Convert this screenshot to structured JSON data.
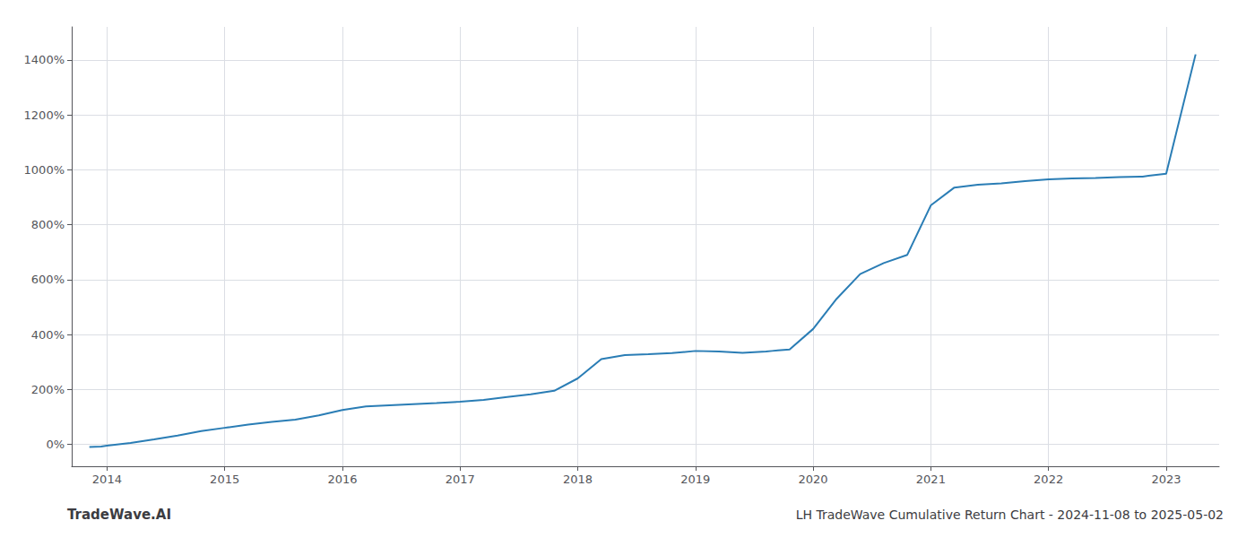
{
  "chart_data": {
    "type": "line",
    "title": "LH TradeWave Cumulative Return Chart - 2024-11-08 to 2025-05-02",
    "annotations": [
      "TradeWave.AI"
    ],
    "color": "#2a7db5",
    "x": [
      2013.85,
      2013.95,
      2014.0,
      2014.2,
      2014.4,
      2014.6,
      2014.8,
      2015.0,
      2015.2,
      2015.4,
      2015.6,
      2015.8,
      2016.0,
      2016.2,
      2016.4,
      2016.6,
      2016.8,
      2017.0,
      2017.2,
      2017.4,
      2017.6,
      2017.8,
      2018.0,
      2018.1,
      2018.2,
      2018.4,
      2018.6,
      2018.8,
      2019.0,
      2019.2,
      2019.4,
      2019.6,
      2019.65,
      2019.7,
      2019.8,
      2020.0,
      2020.2,
      2020.4,
      2020.6,
      2020.8,
      2021.0,
      2021.2,
      2021.4,
      2021.6,
      2021.8,
      2022.0,
      2022.2,
      2022.4,
      2022.6,
      2022.8,
      2022.85,
      2023.0,
      2023.25
    ],
    "values": [
      -10,
      -8,
      -5,
      5,
      18,
      32,
      48,
      60,
      72,
      82,
      90,
      105,
      125,
      138,
      142,
      146,
      150,
      155,
      162,
      172,
      182,
      195,
      240,
      275,
      310,
      325,
      328,
      332,
      340,
      338,
      333,
      338,
      340,
      342,
      345,
      420,
      530,
      620,
      660,
      690,
      870,
      935,
      945,
      950,
      958,
      965,
      968,
      970,
      973,
      975,
      978,
      985,
      1420
    ],
    "xlim": [
      2013.7,
      2023.45
    ],
    "xticks": [
      2014,
      2015,
      2016,
      2017,
      2018,
      2019,
      2020,
      2021,
      2022,
      2023
    ],
    "ylim": [
      -80,
      1520
    ],
    "yticks": [
      {
        "value": 0,
        "label": "0%"
      },
      {
        "value": 200,
        "label": "200%"
      },
      {
        "value": 400,
        "label": "400%"
      },
      {
        "value": 600,
        "label": "600%"
      },
      {
        "value": 800,
        "label": "800%"
      },
      {
        "value": 1000,
        "label": "1000%"
      },
      {
        "value": 1200,
        "label": "1200%"
      },
      {
        "value": 1400,
        "label": "1400%"
      }
    ],
    "grid": true
  }
}
